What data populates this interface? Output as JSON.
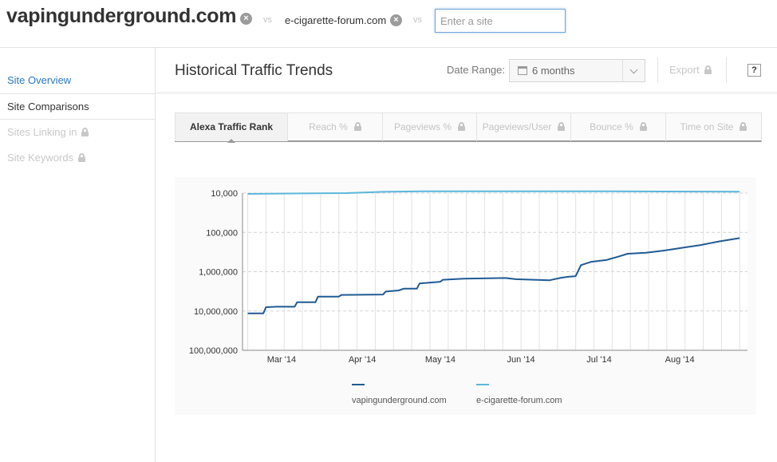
{
  "compare": {
    "site1": "vapingunderground.com",
    "vs_label": "vs",
    "site2": "e-cigarette-forum.com",
    "input_placeholder": "Enter a site"
  },
  "sidebar": {
    "items": [
      {
        "label": "Site Overview",
        "state": "link"
      },
      {
        "label": "Site Comparisons",
        "state": "current"
      },
      {
        "label": "Sites Linking in",
        "state": "locked"
      },
      {
        "label": "Site Keywords",
        "state": "locked"
      }
    ]
  },
  "header": {
    "title": "Historical Traffic Trends",
    "date_range_label": "Date Range:",
    "date_range_value": "6 months",
    "export_label": "Export",
    "help_label": "?"
  },
  "tabs": [
    {
      "label": "Alexa Traffic Rank",
      "active": true,
      "locked": false
    },
    {
      "label": "Reach %",
      "active": false,
      "locked": true
    },
    {
      "label": "Pageviews %",
      "active": false,
      "locked": true
    },
    {
      "label": "Pageviews/User",
      "active": false,
      "locked": true
    },
    {
      "label": "Bounce %",
      "active": false,
      "locked": true
    },
    {
      "label": "Time on Site",
      "active": false,
      "locked": true
    }
  ],
  "chart_data": {
    "type": "line",
    "y_scale": "log-reversed",
    "ylim": [
      100000000,
      10000
    ],
    "y_ticks": [
      "10,000",
      "100,000",
      "1,000,000",
      "10,000,000",
      "100,000,000"
    ],
    "x_ticks": [
      "Mar '14",
      "Apr '14",
      "May '14",
      "Jun '14",
      "Jul '14",
      "Aug '14"
    ],
    "grid": true,
    "legend_position": "bottom",
    "series": [
      {
        "name": "vapingunderground.com",
        "color": "#1f5b94",
        "points": [
          [
            "2014-02-22",
            11500000
          ],
          [
            "2014-02-28",
            11500000
          ],
          [
            "2014-03-01",
            8000000
          ],
          [
            "2014-03-05",
            7800000
          ],
          [
            "2014-03-12",
            7800000
          ],
          [
            "2014-03-13",
            6000000
          ],
          [
            "2014-03-20",
            6000000
          ],
          [
            "2014-03-21",
            4300000
          ],
          [
            "2014-03-29",
            4300000
          ],
          [
            "2014-03-30",
            3900000
          ],
          [
            "2014-04-15",
            3800000
          ],
          [
            "2014-04-16",
            3200000
          ],
          [
            "2014-04-21",
            3000000
          ],
          [
            "2014-04-23",
            2700000
          ],
          [
            "2014-04-28",
            2700000
          ],
          [
            "2014-04-29",
            2000000
          ],
          [
            "2014-05-07",
            1800000
          ],
          [
            "2014-05-08",
            1600000
          ],
          [
            "2014-05-16",
            1500000
          ],
          [
            "2014-06-01",
            1450000
          ],
          [
            "2014-06-05",
            1550000
          ],
          [
            "2014-06-12",
            1600000
          ],
          [
            "2014-06-18",
            1650000
          ],
          [
            "2014-06-22",
            1450000
          ],
          [
            "2014-06-25",
            1350000
          ],
          [
            "2014-06-28",
            1300000
          ],
          [
            "2014-06-30",
            680000
          ],
          [
            "2014-07-04",
            560000
          ],
          [
            "2014-07-10",
            500000
          ],
          [
            "2014-07-14",
            420000
          ],
          [
            "2014-07-18",
            350000
          ],
          [
            "2014-07-25",
            330000
          ],
          [
            "2014-08-01",
            290000
          ],
          [
            "2014-08-09",
            240000
          ],
          [
            "2014-08-15",
            210000
          ],
          [
            "2014-08-22",
            170000
          ],
          [
            "2014-08-30",
            140000
          ]
        ]
      },
      {
        "name": "e-cigarette-forum.com",
        "color": "#5bb7dc",
        "points": [
          [
            "2014-02-22",
            10500
          ],
          [
            "2014-03-15",
            10200
          ],
          [
            "2014-04-01",
            10000
          ],
          [
            "2014-04-15",
            9300
          ],
          [
            "2014-05-01",
            9000
          ],
          [
            "2014-06-01",
            9000
          ],
          [
            "2014-07-01",
            9000
          ],
          [
            "2014-08-01",
            9100
          ],
          [
            "2014-08-30",
            9200
          ]
        ]
      }
    ]
  }
}
